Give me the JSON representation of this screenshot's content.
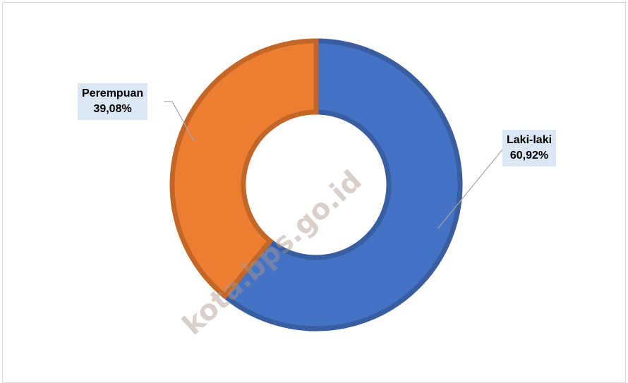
{
  "chart_data": {
    "type": "pie",
    "variant": "donut",
    "categories": [
      "Laki-laki",
      "Perempuan"
    ],
    "values": [
      60.92,
      39.08
    ],
    "value_labels": [
      "60,92%",
      "39,08%"
    ],
    "colors": [
      "#4472c4",
      "#ed7d31"
    ],
    "title": "",
    "legend": "none"
  },
  "watermark": "kota.bps.go.id"
}
